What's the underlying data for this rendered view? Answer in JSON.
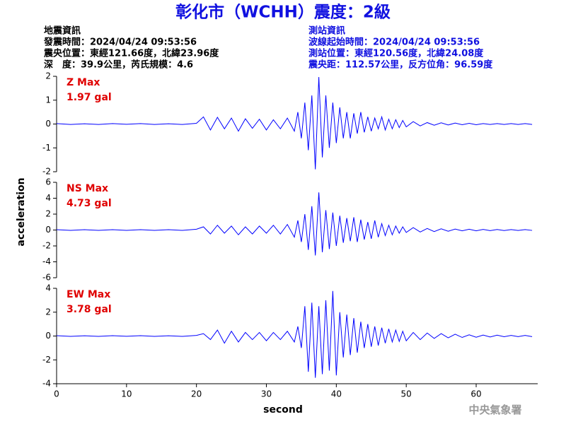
{
  "title": "彰化市（WCHH）震度：2級",
  "left_info": [
    "地震資訊",
    "發震時間：2024/04/24 09:53:56",
    "震央位置：東經121.66度，北緯23.96度",
    "深　度：39.9公里，芮氏規模：4.6"
  ],
  "right_info": [
    "測站資訊",
    "波線起始時間：2024/04/24 09:53:56",
    "測站位置：東經120.56度，北緯24.08度",
    "震央距：112.57公里，反方位角：96.59度"
  ],
  "y_label": "acceleration",
  "footer": "中央氣象署",
  "chart_data": [
    {
      "type": "line",
      "label": "Z Max",
      "max_label": "1.97 gal",
      "ylim": [
        -2,
        2
      ],
      "yticks": [
        -2,
        -1,
        0,
        1,
        2
      ],
      "xlim": [
        0,
        68.8
      ],
      "x": [
        0,
        2,
        4,
        6,
        8,
        10,
        12,
        14,
        16,
        18,
        20,
        21,
        22,
        23,
        24,
        25,
        26,
        27,
        28,
        29,
        30,
        31,
        32,
        33,
        34,
        34.5,
        35,
        35.5,
        36,
        36.5,
        37,
        37.5,
        38,
        38.5,
        39,
        39.5,
        40,
        40.5,
        41,
        41.5,
        42,
        42.5,
        43,
        43.5,
        44,
        44.5,
        45,
        45.5,
        46,
        46.5,
        47,
        47.5,
        48,
        48.5,
        49,
        49.5,
        50,
        51,
        52,
        53,
        54,
        55,
        56,
        57,
        58,
        59,
        60,
        61,
        62,
        63,
        64,
        65,
        66,
        67,
        68
      ],
      "series": [
        {
          "color": "#0000ff",
          "values": [
            0.02,
            -0.02,
            0.01,
            -0.02,
            0.02,
            -0.01,
            0.02,
            -0.02,
            0.01,
            -0.02,
            0.03,
            0.3,
            -0.25,
            0.28,
            -0.2,
            0.25,
            -0.3,
            0.22,
            -0.18,
            0.2,
            -0.25,
            0.18,
            -0.2,
            0.25,
            -0.3,
            0.5,
            -0.6,
            0.9,
            -1.1,
            1.2,
            -1.9,
            1.97,
            -1.4,
            1.2,
            -1.0,
            0.9,
            -0.8,
            0.7,
            -0.6,
            0.5,
            -0.6,
            0.45,
            -0.4,
            0.5,
            -0.35,
            0.3,
            -0.3,
            0.25,
            -0.2,
            0.3,
            -0.25,
            0.2,
            -0.2,
            0.18,
            -0.15,
            0.15,
            -0.12,
            0.1,
            -0.08,
            0.06,
            -0.05,
            0.05,
            -0.04,
            0.04,
            -0.03,
            0.03,
            -0.03,
            0.02,
            -0.02,
            0.02,
            -0.02,
            0.02,
            -0.02,
            0.02,
            -0.02
          ]
        }
      ]
    },
    {
      "type": "line",
      "label": "NS Max",
      "max_label": "4.73 gal",
      "ylim": [
        -6,
        6
      ],
      "yticks": [
        -6,
        -4,
        -2,
        0,
        2,
        4,
        6
      ],
      "xlim": [
        0,
        68.8
      ],
      "x": [
        0,
        2,
        4,
        6,
        8,
        10,
        12,
        14,
        16,
        18,
        20,
        21,
        22,
        23,
        24,
        25,
        26,
        27,
        28,
        29,
        30,
        31,
        32,
        33,
        34,
        34.5,
        35,
        35.5,
        36,
        36.5,
        37,
        37.5,
        38,
        38.5,
        39,
        39.5,
        40,
        40.5,
        41,
        41.5,
        42,
        42.5,
        43,
        43.5,
        44,
        44.5,
        45,
        45.5,
        46,
        46.5,
        47,
        47.5,
        48,
        48.5,
        49,
        49.5,
        50,
        51,
        52,
        53,
        54,
        55,
        56,
        57,
        58,
        59,
        60,
        61,
        62,
        63,
        64,
        65,
        66,
        67,
        68
      ],
      "series": [
        {
          "color": "#0000ff",
          "values": [
            0.05,
            -0.05,
            0.04,
            -0.05,
            0.05,
            -0.04,
            0.05,
            -0.05,
            0.04,
            -0.05,
            0.1,
            0.4,
            -0.5,
            0.6,
            -0.4,
            0.5,
            -0.6,
            0.4,
            -0.5,
            0.5,
            -0.4,
            0.6,
            -0.5,
            0.7,
            -0.9,
            1.2,
            -1.5,
            2.0,
            -2.5,
            3.0,
            -3.2,
            4.73,
            -2.8,
            2.5,
            -2.4,
            2.2,
            -2.0,
            1.8,
            -1.6,
            1.5,
            -1.4,
            1.6,
            -1.5,
            1.3,
            -1.2,
            1.0,
            -1.1,
            1.2,
            -0.9,
            0.8,
            -0.7,
            0.6,
            -0.6,
            0.5,
            -0.4,
            0.4,
            -0.3,
            0.3,
            -0.25,
            0.2,
            -0.2,
            0.15,
            -0.15,
            0.12,
            -0.1,
            0.1,
            -0.1,
            0.08,
            -0.08,
            0.07,
            -0.07,
            0.06,
            -0.06,
            0.05,
            -0.05
          ]
        }
      ]
    },
    {
      "type": "line",
      "label": "EW Max",
      "max_label": "3.78 gal",
      "ylim": [
        -4,
        4
      ],
      "yticks": [
        -4,
        -2,
        0,
        2,
        4
      ],
      "xlim": [
        0,
        68.8
      ],
      "xticks": [
        0,
        10,
        20,
        30,
        40,
        50,
        60
      ],
      "x_label": "second",
      "x": [
        0,
        2,
        4,
        6,
        8,
        10,
        12,
        14,
        16,
        18,
        20,
        21,
        22,
        23,
        24,
        25,
        26,
        27,
        28,
        29,
        30,
        31,
        32,
        33,
        34,
        34.5,
        35,
        35.5,
        36,
        36.5,
        37,
        37.5,
        38,
        38.5,
        39,
        39.5,
        40,
        40.5,
        41,
        41.5,
        42,
        42.5,
        43,
        43.5,
        44,
        44.5,
        45,
        45.5,
        46,
        46.5,
        47,
        47.5,
        48,
        48.5,
        49,
        49.5,
        50,
        51,
        52,
        53,
        54,
        55,
        56,
        57,
        58,
        59,
        60,
        61,
        62,
        63,
        64,
        65,
        66,
        67,
        68
      ],
      "series": [
        {
          "color": "#0000ff",
          "values": [
            0.03,
            -0.03,
            0.02,
            -0.03,
            0.03,
            -0.02,
            0.03,
            -0.03,
            0.02,
            -0.03,
            0.05,
            0.2,
            -0.3,
            0.5,
            -0.6,
            0.4,
            -0.5,
            0.3,
            -0.3,
            0.3,
            -0.4,
            0.3,
            -0.3,
            0.4,
            -0.5,
            0.8,
            -1.0,
            2.5,
            -3.0,
            2.8,
            -3.5,
            2.5,
            -3.2,
            3.0,
            -2.9,
            3.78,
            -3.3,
            2.0,
            -1.8,
            1.8,
            -1.6,
            1.5,
            -1.4,
            1.2,
            -1.0,
            1.0,
            -0.9,
            0.8,
            -0.8,
            0.7,
            -0.6,
            0.6,
            -0.5,
            0.5,
            -0.45,
            0.4,
            -0.4,
            0.3,
            -0.3,
            0.25,
            -0.2,
            0.2,
            -0.15,
            0.15,
            -0.12,
            0.1,
            -0.1,
            0.08,
            -0.08,
            0.07,
            -0.06,
            0.05,
            -0.05,
            0.05,
            -0.05
          ]
        }
      ]
    }
  ]
}
